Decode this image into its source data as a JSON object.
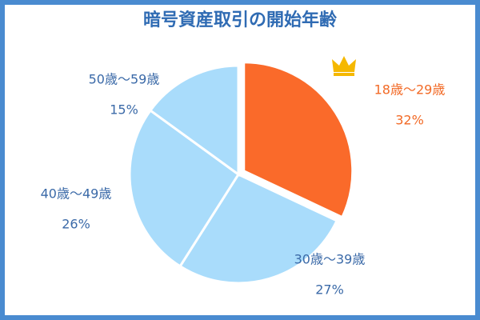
{
  "chart_data": {
    "type": "pie",
    "title": "暗号資産取引の開始年齢",
    "categories": [
      "18歳～29歳",
      "30歳～39歳",
      "40歳～49歳",
      "50歳～59歳"
    ],
    "values": [
      32,
      27,
      26,
      15
    ],
    "value_labels": [
      "32%",
      "27%",
      "26%",
      "15%"
    ],
    "colors": [
      "#fa6a2a",
      "#a9dcfb",
      "#a9dcfb",
      "#a9dcfb"
    ],
    "label_colors": [
      "#f26a26",
      "#3b6aa8",
      "#3b6aa8",
      "#3b6aa8"
    ]
  }
}
